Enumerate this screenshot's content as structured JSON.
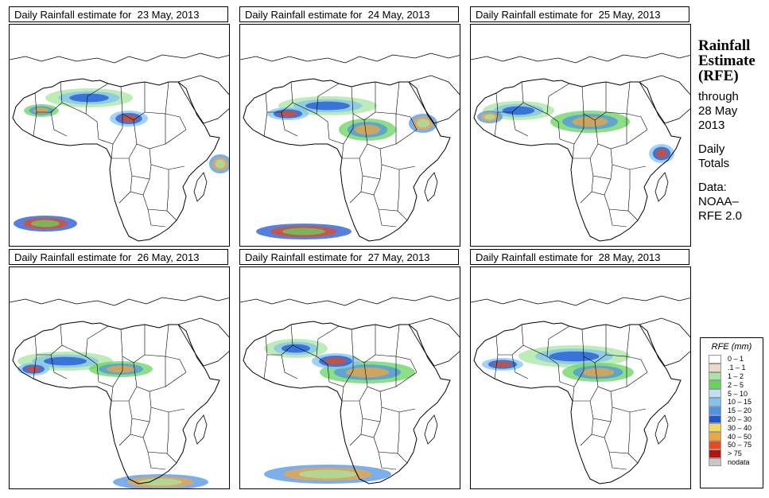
{
  "panels": [
    {
      "title": "Daily Rainfall estimate for  23 May, 2013",
      "day": 23
    },
    {
      "title": "Daily Rainfall estimate for  24 May, 2013",
      "day": 24
    },
    {
      "title": "Daily Rainfall estimate for  25 May, 2013",
      "day": 25
    },
    {
      "title": "Daily Rainfall estimate for  26 May, 2013",
      "day": 26
    },
    {
      "title": "Daily Rainfall estimate for  27 May, 2013",
      "day": 27
    },
    {
      "title": "Daily Rainfall estimate for  28 May, 2013",
      "day": 28
    }
  ],
  "sidebar": {
    "heading_line1": "Rainfall",
    "heading_line2": "Estimate",
    "heading_line3": "(RFE)",
    "through": "through",
    "date_line1": "28 May",
    "date_line2": "2013",
    "daily": "Daily",
    "totals": "Totals",
    "data_label": "Data:",
    "source_line1": "NOAA–",
    "source_line2": "RFE 2.0"
  },
  "legend": {
    "title": "RFE (mm)",
    "items": [
      {
        "label": "0 – 1",
        "color": "#ffffff"
      },
      {
        "label": ".1 – 1",
        "color": "#ead9c6"
      },
      {
        "label": "1 – 2",
        "color": "#a8e6a0"
      },
      {
        "label": "2 – 5",
        "color": "#66d35f"
      },
      {
        "label": "5 – 10",
        "color": "#bde0f5"
      },
      {
        "label": "10 – 15",
        "color": "#82c3ef"
      },
      {
        "label": "15 – 20",
        "color": "#4f93e6"
      },
      {
        "label": "20 – 30",
        "color": "#1d56d6"
      },
      {
        "label": "30 – 40",
        "color": "#f2d666"
      },
      {
        "label": "40 – 50",
        "color": "#f1a63b"
      },
      {
        "label": "50 – 75",
        "color": "#e74a1e"
      },
      {
        "label": "> 75",
        "color": "#b3130c"
      },
      {
        "label": "nodata",
        "color": "#c8c8c8"
      }
    ]
  }
}
